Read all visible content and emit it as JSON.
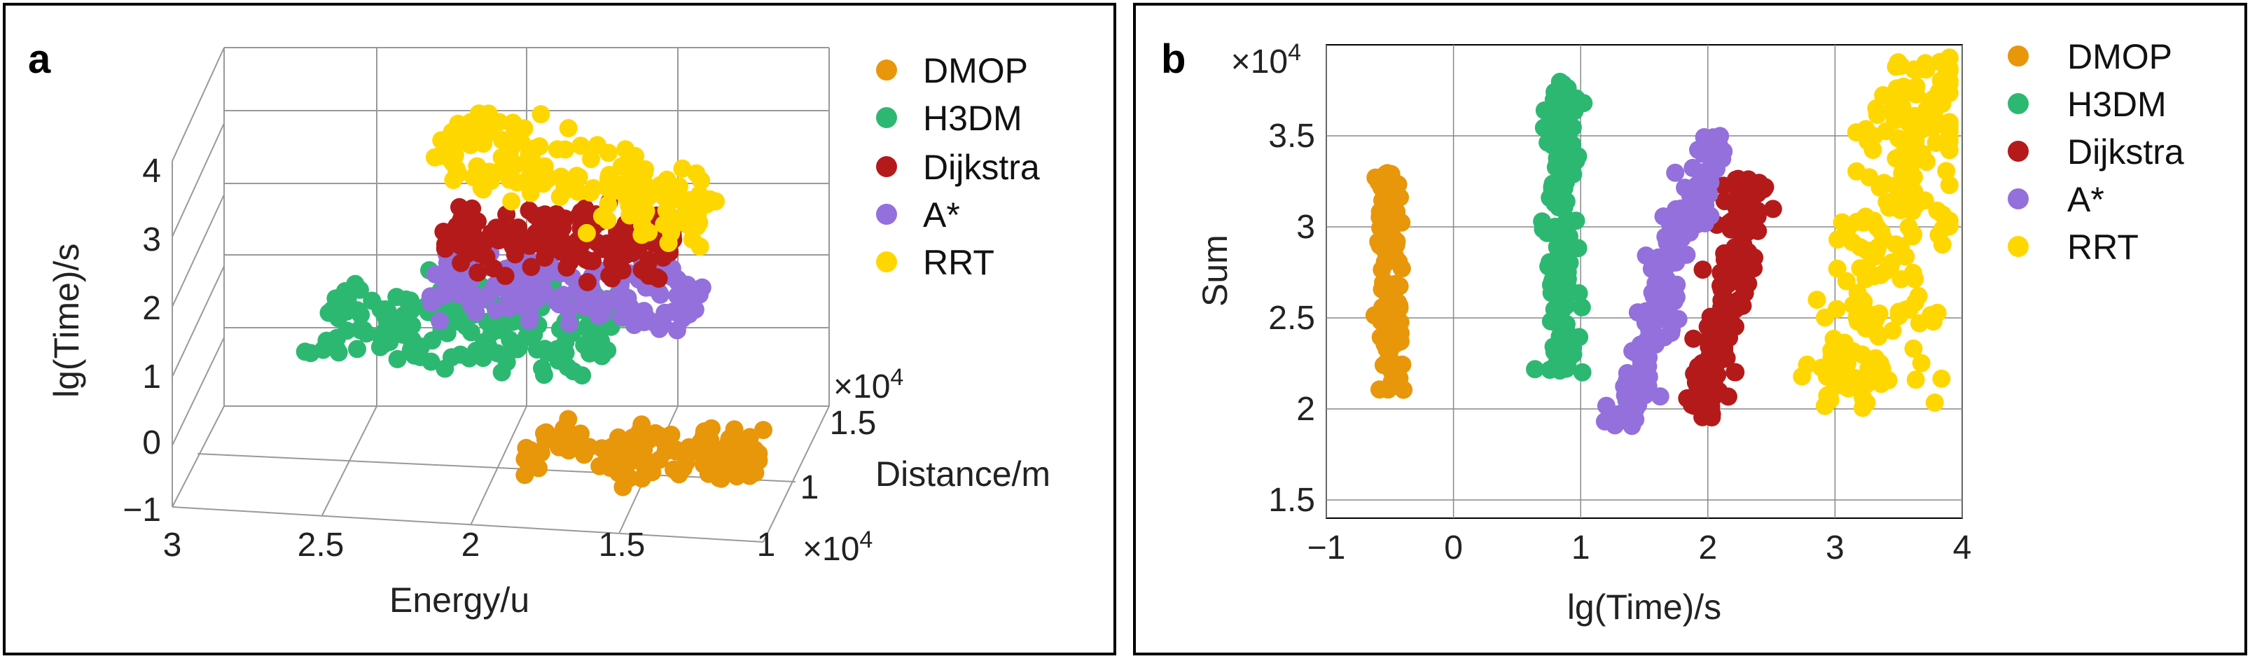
{
  "colors": {
    "DMOP": "#E8960A",
    "H3DM": "#2DB872",
    "Dijkstra": "#B51A1A",
    "A*": "#9370DB",
    "RRT": "#FFD700"
  },
  "chart_data": [
    {
      "panel": "a",
      "type": "scatter",
      "title": "",
      "xlabel": "Energy/u",
      "ylabel": "Distance/m",
      "zlabel": "lg(Time)/s",
      "x_ticks": [
        "3",
        "2.5",
        "2",
        "1.5",
        "1"
      ],
      "x_multiplier": "×10^4",
      "y_ticks": [
        "1",
        "1.5"
      ],
      "y_multiplier": "×10^4",
      "z_ticks": [
        "−1",
        "0",
        "1",
        "2",
        "3",
        "4"
      ],
      "xlim": [
        1,
        3
      ],
      "ylim": [
        0.8,
        1.8
      ],
      "zlim": [
        -1,
        4
      ],
      "legend_position": "right",
      "series": [
        {
          "name": "DMOP",
          "x_range": [
            1.1,
            1.9
          ],
          "y_range": [
            1.1,
            1.5
          ],
          "z_approx": -0.6,
          "n": 120
        },
        {
          "name": "H3DM",
          "x_range": [
            1.6,
            2.6
          ],
          "y_range": [
            1.0,
            1.7
          ],
          "z_approx": 1.0,
          "n": 160
        },
        {
          "name": "Dijkstra",
          "x_range": [
            1.4,
            2.2
          ],
          "y_range": [
            1.1,
            1.6
          ],
          "z_approx": 2.3,
          "n": 150
        },
        {
          "name": "A*",
          "x_range": [
            1.3,
            2.2
          ],
          "y_range": [
            1.0,
            1.5
          ],
          "z_approx": 1.8,
          "n": 180
        },
        {
          "name": "RRT",
          "x_range": [
            1.3,
            2.2
          ],
          "y_range": [
            1.1,
            1.6
          ],
          "z_approx": 3.3,
          "n": 160
        }
      ]
    },
    {
      "panel": "b",
      "type": "scatter",
      "title": "",
      "xlabel": "lg(Time)/s",
      "ylabel": "Sum",
      "y_multiplier": "×10^4",
      "x_ticks": [
        "−1",
        "0",
        "1",
        "2",
        "3",
        "4"
      ],
      "y_ticks": [
        "1.5",
        "2",
        "2.5",
        "3",
        "3.5"
      ],
      "xlim": [
        -1,
        4
      ],
      "ylim": [
        1.4,
        4.0
      ],
      "grid": true,
      "legend_position": "right",
      "series": [
        {
          "name": "DMOP",
          "x_center": -0.5,
          "x_spread": 0.05,
          "y_range": [
            2.1,
            3.3
          ],
          "n": 120
        },
        {
          "name": "H3DM",
          "x_center": 0.85,
          "x_spread": 0.06,
          "y_range": [
            2.2,
            3.8
          ],
          "n": 150
        },
        {
          "name": "Dijkstra",
          "x_range": [
            1.95,
            2.35
          ],
          "y_range": [
            1.95,
            3.3
          ],
          "n": 160
        },
        {
          "name": "A*",
          "x_range": [
            1.3,
            2.05
          ],
          "y_range": [
            1.9,
            3.5
          ],
          "n": 170
        },
        {
          "name": "RRT",
          "x_range": [
            2.6,
            3.9
          ],
          "y_range": [
            2.0,
            3.95
          ],
          "n": 220
        }
      ]
    }
  ],
  "panels": {
    "a": {
      "letter": "a",
      "legend": [
        "DMOP",
        "H3DM",
        "Dijkstra",
        "A*",
        "RRT"
      ],
      "xlabel": "Energy/u",
      "ylabel": "Distance/m",
      "zlabel": "lg(Time)/s",
      "x_ticks": [
        "3",
        "2.5",
        "2",
        "1.5",
        "1"
      ],
      "y_ticks": [
        "1",
        "1.5"
      ],
      "z_ticks": [
        "−1",
        "0",
        "1",
        "2",
        "3",
        "4"
      ],
      "mult_base": "×10",
      "mult_exp": "4"
    },
    "b": {
      "letter": "b",
      "legend": [
        "DMOP",
        "H3DM",
        "Dijkstra",
        "A*",
        "RRT"
      ],
      "xlabel": "lg(Time)/s",
      "ylabel": "Sum",
      "x_ticks": [
        "−1",
        "0",
        "1",
        "2",
        "3",
        "4"
      ],
      "y_ticks": [
        "1.5",
        "2",
        "2.5",
        "3",
        "3.5"
      ],
      "mult_base": "×10",
      "mult_exp": "4"
    }
  }
}
